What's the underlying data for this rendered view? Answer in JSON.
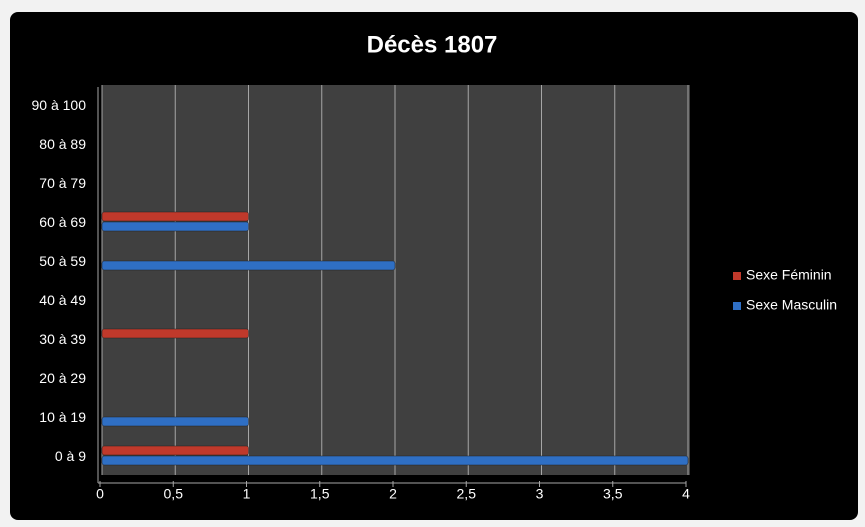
{
  "chart_data": {
    "type": "hbar",
    "title": "Décès 1807",
    "categories": [
      "0 à 9",
      "10 à 19",
      "20 à 29",
      "30 à 39",
      "40 à 49",
      "50 à 59",
      "60 à 69",
      "70 à 79",
      "80 à 89",
      "90 à 100"
    ],
    "series": [
      {
        "name": "Sexe Féminin",
        "color": "#c0392b",
        "values": [
          1,
          0,
          0,
          1,
          0,
          0,
          1,
          0,
          0,
          0
        ]
      },
      {
        "name": "Sexe Masculin",
        "color": "#2f6fc4",
        "values": [
          4,
          1,
          0,
          0,
          0,
          2,
          1,
          0,
          0,
          0
        ]
      }
    ],
    "xlim": [
      0,
      4
    ],
    "xticks": [
      0,
      {
        "value": 0.5,
        "label": "0,5"
      },
      1,
      {
        "value": 1.5,
        "label": "1,5"
      },
      2,
      {
        "value": 2.5,
        "label": "2,5"
      },
      3,
      {
        "value": 3.5,
        "label": "3,5"
      },
      4
    ],
    "grid": true,
    "legend": "right"
  }
}
